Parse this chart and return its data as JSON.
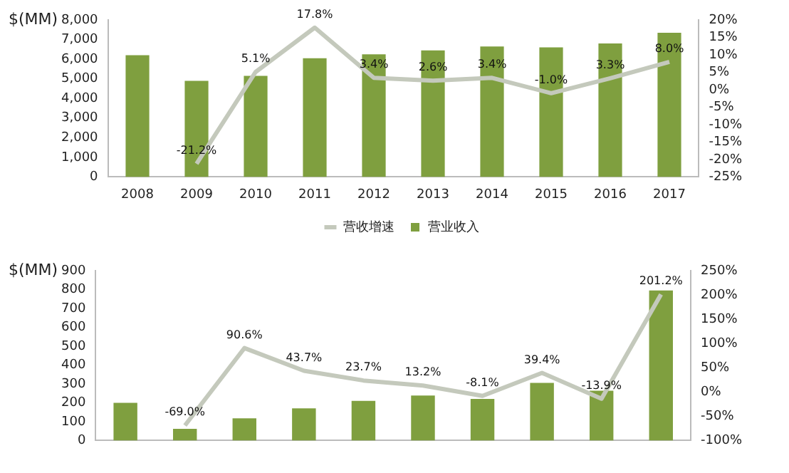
{
  "chart_data": [
    {
      "type": "bar",
      "ylabel": "$(MM)",
      "categories": [
        "2008",
        "2009",
        "2010",
        "2011",
        "2012",
        "2013",
        "2014",
        "2015",
        "2016",
        "2017"
      ],
      "series": [
        {
          "name": "营业收入",
          "color": "#7f9f3f",
          "values": [
            6200,
            4900,
            5150,
            6050,
            6250,
            6450,
            6650,
            6600,
            6800,
            7350
          ]
        },
        {
          "name": "营收增速",
          "type": "line",
          "axis": "y2",
          "color": "#c4c9bc",
          "values": [
            null,
            -21.2,
            5.1,
            17.8,
            3.4,
            2.6,
            3.4,
            -1.0,
            3.3,
            8.0
          ],
          "value_labels": [
            null,
            "-21.2%",
            "5.1%",
            "17.8%",
            "3.4%",
            "2.6%",
            "3.4%",
            "-1.0%",
            "3.3%",
            "8.0%"
          ]
        }
      ],
      "ylim": [
        0,
        8000
      ],
      "yticks": [
        0,
        {
          "value": 1000,
          "label": "1,000"
        },
        {
          "value": 2000,
          "label": "2,000"
        },
        {
          "value": 3000,
          "label": "3,000"
        },
        {
          "value": 4000,
          "label": "4,000"
        },
        {
          "value": 5000,
          "label": "5,000"
        },
        {
          "value": 6000,
          "label": "6,000"
        },
        {
          "value": 7000,
          "label": "7,000"
        },
        {
          "value": 8000,
          "label": "8,000"
        }
      ],
      "y2lim": [
        -25,
        20
      ],
      "y2ticks": [
        {
          "value": -25,
          "label": "-25%"
        },
        {
          "value": -20,
          "label": "-20%"
        },
        {
          "value": -15,
          "label": "-15%"
        },
        {
          "value": -10,
          "label": "-10%"
        },
        {
          "value": -5,
          "label": "-5%"
        },
        {
          "value": 0,
          "label": "0%"
        },
        {
          "value": 5,
          "label": "5%"
        },
        {
          "value": 10,
          "label": "10%"
        },
        {
          "value": 15,
          "label": "15%"
        },
        {
          "value": 20,
          "label": "20%"
        }
      ],
      "legend": "bottom",
      "marker": "none",
      "grid": false
    },
    {
      "type": "bar",
      "ylabel": "$(MM)",
      "categories": [
        null,
        null,
        null,
        null,
        null,
        null,
        null,
        null,
        null,
        null
      ],
      "series": [
        {
          "color": "#7f9f3f",
          "values": [
            200,
            62,
            118,
            170,
            210,
            238,
            220,
            305,
            264,
            795
          ]
        },
        {
          "type": "line",
          "axis": "y2",
          "color": "#c4c9bc",
          "values": [
            null,
            -69.0,
            90.6,
            43.7,
            23.7,
            13.2,
            -8.1,
            39.4,
            -13.9,
            201.2
          ],
          "value_labels": [
            null,
            "-69.0%",
            "90.6%",
            "43.7%",
            "23.7%",
            "13.2%",
            "-8.1%",
            "39.4%",
            "-13.9%",
            "201.2%"
          ]
        }
      ],
      "ylim": [
        0,
        900
      ],
      "yticks": [
        0,
        100,
        200,
        300,
        400,
        500,
        600,
        700,
        800,
        900
      ],
      "y2lim": [
        -100,
        250
      ],
      "y2ticks": [
        {
          "value": -100,
          "label": "-100%"
        },
        {
          "value": -50,
          "label": "-50%"
        },
        {
          "value": 0,
          "label": "0%"
        },
        {
          "value": 50,
          "label": "50%"
        },
        {
          "value": 100,
          "label": "100%"
        },
        {
          "value": 150,
          "label": "150%"
        },
        {
          "value": 200,
          "label": "200%"
        },
        {
          "value": 250,
          "label": "250%"
        }
      ],
      "legend": false,
      "marker": "none",
      "grid": false
    }
  ]
}
